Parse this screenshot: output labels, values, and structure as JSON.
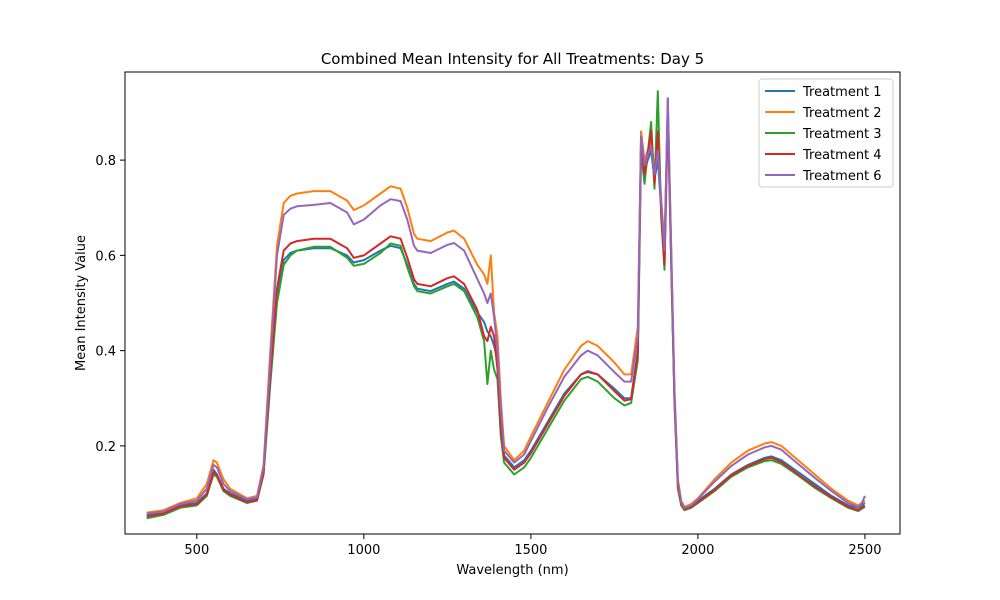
{
  "chart_data": {
    "type": "line",
    "title": "Combined Mean Intensity for All Treatments: Day 5",
    "xlabel": "Wavelength (nm)",
    "ylabel": "Mean Intensity Value",
    "xlim": [
      285,
      2605
    ],
    "ylim": [
      0.015,
      0.985
    ],
    "xticks": [
      500,
      1000,
      1500,
      2000,
      2500
    ],
    "yticks": [
      0.2,
      0.4,
      0.6,
      0.8
    ],
    "xtick_labels": [
      "500",
      "1000",
      "1500",
      "2000",
      "2500"
    ],
    "ytick_labels": [
      "0.2",
      "0.4",
      "0.6",
      "0.8"
    ],
    "grid": false,
    "legend_position": "top-right",
    "x": [
      350,
      400,
      450,
      500,
      530,
      550,
      560,
      580,
      600,
      650,
      680,
      700,
      720,
      740,
      760,
      780,
      800,
      850,
      900,
      950,
      970,
      1000,
      1050,
      1080,
      1110,
      1130,
      1150,
      1160,
      1200,
      1250,
      1270,
      1300,
      1340,
      1360,
      1370,
      1380,
      1390,
      1400,
      1410,
      1420,
      1450,
      1480,
      1500,
      1550,
      1600,
      1650,
      1670,
      1700,
      1750,
      1780,
      1800,
      1820,
      1830,
      1840,
      1860,
      1870,
      1880,
      1890,
      1900,
      1910,
      1920,
      1930,
      1940,
      1950,
      1960,
      1980,
      2000,
      2050,
      2100,
      2150,
      2200,
      2220,
      2250,
      2300,
      2350,
      2400,
      2450,
      2480,
      2490,
      2500
    ],
    "series": [
      {
        "name": "Treatment 1",
        "color": "#1f77b4",
        "values": [
          0.055,
          0.06,
          0.075,
          0.08,
          0.1,
          0.15,
          0.14,
          0.11,
          0.1,
          0.085,
          0.09,
          0.15,
          0.35,
          0.52,
          0.59,
          0.605,
          0.61,
          0.615,
          0.615,
          0.6,
          0.585,
          0.59,
          0.61,
          0.62,
          0.615,
          0.58,
          0.54,
          0.53,
          0.525,
          0.54,
          0.545,
          0.53,
          0.48,
          0.46,
          0.44,
          0.43,
          0.41,
          0.38,
          0.25,
          0.18,
          0.155,
          0.17,
          0.19,
          0.25,
          0.31,
          0.35,
          0.355,
          0.35,
          0.32,
          0.3,
          0.3,
          0.4,
          0.86,
          0.78,
          0.82,
          0.76,
          0.8,
          0.7,
          0.6,
          0.93,
          0.6,
          0.3,
          0.12,
          0.08,
          0.07,
          0.075,
          0.085,
          0.11,
          0.14,
          0.16,
          0.175,
          0.178,
          0.17,
          0.145,
          0.12,
          0.095,
          0.075,
          0.07,
          0.075,
          0.08
        ]
      },
      {
        "name": "Treatment 2",
        "color": "#ff7f0e",
        "values": [
          0.06,
          0.065,
          0.08,
          0.09,
          0.12,
          0.17,
          0.165,
          0.13,
          0.11,
          0.09,
          0.095,
          0.16,
          0.4,
          0.62,
          0.71,
          0.725,
          0.73,
          0.735,
          0.735,
          0.715,
          0.695,
          0.705,
          0.73,
          0.745,
          0.74,
          0.7,
          0.645,
          0.635,
          0.63,
          0.648,
          0.652,
          0.635,
          0.58,
          0.56,
          0.54,
          0.6,
          0.48,
          0.43,
          0.3,
          0.2,
          0.17,
          0.19,
          0.22,
          0.29,
          0.36,
          0.41,
          0.42,
          0.41,
          0.375,
          0.35,
          0.35,
          0.45,
          0.86,
          0.8,
          0.84,
          0.78,
          0.83,
          0.72,
          0.62,
          0.9,
          0.62,
          0.32,
          0.13,
          0.085,
          0.072,
          0.078,
          0.09,
          0.13,
          0.165,
          0.19,
          0.205,
          0.208,
          0.2,
          0.17,
          0.14,
          0.11,
          0.085,
          0.075,
          0.08,
          0.085
        ]
      },
      {
        "name": "Treatment 3",
        "color": "#2ca02c",
        "values": [
          0.048,
          0.055,
          0.07,
          0.075,
          0.095,
          0.14,
          0.135,
          0.105,
          0.095,
          0.08,
          0.085,
          0.14,
          0.33,
          0.5,
          0.58,
          0.6,
          0.61,
          0.618,
          0.618,
          0.595,
          0.578,
          0.582,
          0.605,
          0.625,
          0.62,
          0.575,
          0.535,
          0.525,
          0.52,
          0.535,
          0.54,
          0.525,
          0.47,
          0.42,
          0.33,
          0.4,
          0.36,
          0.34,
          0.22,
          0.165,
          0.14,
          0.155,
          0.175,
          0.235,
          0.295,
          0.34,
          0.345,
          0.335,
          0.3,
          0.285,
          0.29,
          0.38,
          0.82,
          0.75,
          0.88,
          0.74,
          0.945,
          0.68,
          0.57,
          0.9,
          0.58,
          0.29,
          0.11,
          0.075,
          0.065,
          0.07,
          0.08,
          0.105,
          0.135,
          0.155,
          0.168,
          0.17,
          0.162,
          0.138,
          0.112,
          0.09,
          0.07,
          0.063,
          0.068,
          0.072
        ]
      },
      {
        "name": "Treatment 4",
        "color": "#d62728",
        "values": [
          0.052,
          0.058,
          0.073,
          0.078,
          0.098,
          0.145,
          0.14,
          0.108,
          0.098,
          0.082,
          0.086,
          0.145,
          0.35,
          0.53,
          0.61,
          0.625,
          0.63,
          0.635,
          0.635,
          0.615,
          0.595,
          0.6,
          0.625,
          0.64,
          0.635,
          0.595,
          0.55,
          0.54,
          0.535,
          0.552,
          0.556,
          0.54,
          0.485,
          0.43,
          0.42,
          0.45,
          0.43,
          0.36,
          0.24,
          0.175,
          0.15,
          0.165,
          0.185,
          0.245,
          0.305,
          0.35,
          0.357,
          0.35,
          0.315,
          0.295,
          0.298,
          0.395,
          0.84,
          0.77,
          0.86,
          0.75,
          0.86,
          0.69,
          0.58,
          0.9,
          0.59,
          0.295,
          0.115,
          0.078,
          0.067,
          0.072,
          0.082,
          0.108,
          0.138,
          0.158,
          0.172,
          0.175,
          0.166,
          0.14,
          0.115,
          0.092,
          0.072,
          0.065,
          0.07,
          0.075
        ]
      },
      {
        "name": "Treatment 6",
        "color": "#9467bd",
        "values": [
          0.058,
          0.062,
          0.078,
          0.085,
          0.11,
          0.16,
          0.155,
          0.12,
          0.105,
          0.088,
          0.092,
          0.155,
          0.38,
          0.6,
          0.685,
          0.698,
          0.703,
          0.706,
          0.71,
          0.69,
          0.665,
          0.675,
          0.705,
          0.718,
          0.714,
          0.675,
          0.62,
          0.61,
          0.605,
          0.622,
          0.626,
          0.61,
          0.55,
          0.52,
          0.5,
          0.52,
          0.47,
          0.4,
          0.28,
          0.19,
          0.165,
          0.182,
          0.21,
          0.28,
          0.345,
          0.39,
          0.4,
          0.39,
          0.355,
          0.335,
          0.335,
          0.43,
          0.85,
          0.79,
          0.83,
          0.77,
          0.82,
          0.71,
          0.61,
          0.93,
          0.61,
          0.31,
          0.125,
          0.082,
          0.07,
          0.075,
          0.088,
          0.125,
          0.158,
          0.182,
          0.197,
          0.2,
          0.192,
          0.162,
          0.133,
          0.105,
          0.08,
          0.072,
          0.078,
          0.095
        ]
      }
    ]
  }
}
